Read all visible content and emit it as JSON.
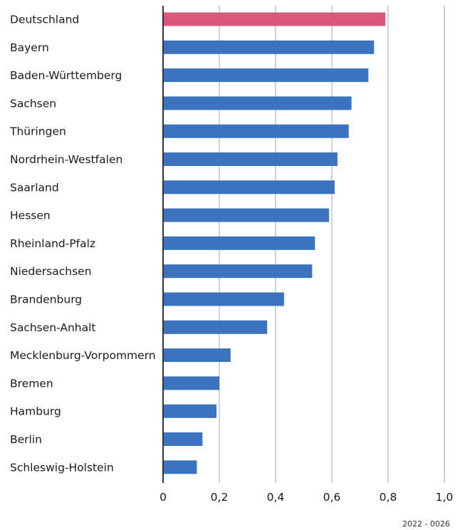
{
  "chart_data": {
    "type": "bar",
    "orientation": "horizontal",
    "categories": [
      "Deutschland",
      "Bayern",
      "Baden-Württemberg",
      "Sachsen",
      "Thüringen",
      "Nordrhein-Westfalen",
      "Saarland",
      "Hessen",
      "Rheinland-Pfalz",
      "Niedersachsen",
      "Brandenburg",
      "Sachsen-Anhalt",
      "Mecklenburg-Vorpommern",
      "Bremen",
      "Hamburg",
      "Berlin",
      "Schleswig-Holstein"
    ],
    "values": [
      0.79,
      0.75,
      0.73,
      0.67,
      0.66,
      0.62,
      0.61,
      0.59,
      0.54,
      0.53,
      0.43,
      0.37,
      0.24,
      0.2,
      0.19,
      0.14,
      0.12
    ],
    "highlight_index": 0,
    "colors": {
      "bar": "#3b73bf",
      "highlight": "#d9577a",
      "grid": "#b5b5b5",
      "axis": "#333333"
    },
    "xlim": [
      0,
      1.0
    ],
    "xticks": [
      0,
      0.2,
      0.4,
      0.6,
      0.8,
      1.0
    ],
    "xtick_labels": [
      "0",
      "0,2",
      "0,4",
      "0,6",
      "0,8",
      "1,0"
    ],
    "grid": true,
    "title": "",
    "xlabel": "",
    "ylabel": ""
  },
  "footnote": "2022 - 0026"
}
